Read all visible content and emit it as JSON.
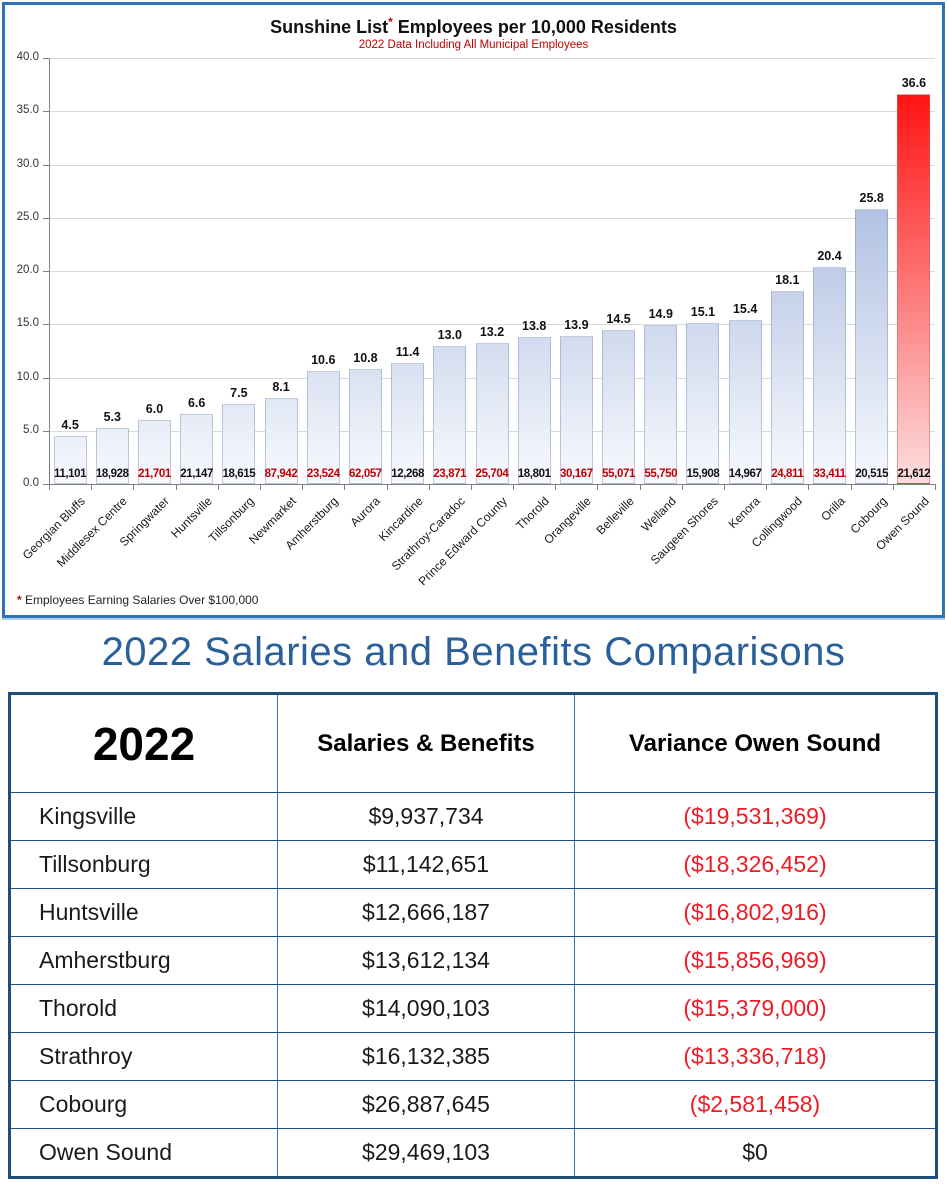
{
  "colors": {
    "accent": "#2E74B5",
    "navy": "#1F4E79",
    "title_blue": "#2A6099",
    "chart_red": "#C00000",
    "table_red": "#ED1C24",
    "grid_gray": "#D9D9D9",
    "axis_gray": "#808080",
    "bar_top": "#8CA3D4",
    "bar_bottom": "#F7F9FD",
    "bar_red_top": "#FF0000",
    "bar_red_bottom": "#FCDEDE"
  },
  "chart_data": {
    "type": "bar",
    "title_prefix": "Sunshine List",
    "title_star": "*",
    "title_suffix": " Employees per 10,000 Residents",
    "title": "Sunshine List* Employees per 10,000 Residents",
    "subtitle": "2022 Data Including All Municipal Employees",
    "footnote_star": "*",
    "footnote_text": " Employees Earning Salaries Over $100,000",
    "ylim": [
      0,
      40
    ],
    "ytick_step": 5,
    "grid": true,
    "legend_position": "none",
    "categories": [
      "Georgian Bluffs",
      "Middlesex Centre",
      "Springwater",
      "Huntsville",
      "Tillsonburg",
      "Newmarket",
      "Amherstburg",
      "Aurora",
      "Kincardine",
      "Strathroy-Caradoc",
      "Prince Edward County",
      "Thorold",
      "Orangeville",
      "Belleville",
      "Welland",
      "Saugeen Shores",
      "Kenora",
      "Collingwood",
      "Orilla",
      "Cobourg",
      "Owen Sound"
    ],
    "values": [
      4.5,
      5.3,
      6.0,
      6.6,
      7.5,
      8.1,
      10.6,
      10.8,
      11.4,
      13.0,
      13.2,
      13.8,
      13.9,
      14.5,
      14.9,
      15.1,
      15.4,
      18.1,
      20.4,
      25.8,
      36.6
    ],
    "base_values": [
      "11,101",
      "18,928",
      "21,701",
      "21,147",
      "18,615",
      "87,942",
      "23,524",
      "62,057",
      "12,268",
      "23,871",
      "25,704",
      "18,801",
      "30,167",
      "55,071",
      "55,750",
      "15,908",
      "14,967",
      "24,811",
      "33,411",
      "20,515",
      "21,612"
    ],
    "base_value_red": [
      false,
      false,
      true,
      false,
      false,
      true,
      true,
      true,
      false,
      true,
      true,
      false,
      true,
      true,
      true,
      false,
      false,
      true,
      true,
      false,
      false
    ],
    "highlight_index": 20
  },
  "section_title": "2022 Salaries and Benefits Comparisons",
  "table": {
    "headers": [
      "2022",
      "Salaries & Benefits",
      "Variance Owen Sound"
    ],
    "rows": [
      {
        "name": "Kingsville",
        "salaries_benefits": "$9,937,734",
        "variance": "($19,531,369)",
        "negative": true
      },
      {
        "name": "Tillsonburg",
        "salaries_benefits": "$11,142,651",
        "variance": "($18,326,452)",
        "negative": true
      },
      {
        "name": "Huntsville",
        "salaries_benefits": "$12,666,187",
        "variance": "($16,802,916)",
        "negative": true
      },
      {
        "name": "Amherstburg",
        "salaries_benefits": "$13,612,134",
        "variance": "($15,856,969)",
        "negative": true
      },
      {
        "name": "Thorold",
        "salaries_benefits": "$14,090,103",
        "variance": "($15,379,000)",
        "negative": true
      },
      {
        "name": "Strathroy",
        "salaries_benefits": "$16,132,385",
        "variance": "($13,336,718)",
        "negative": true
      },
      {
        "name": "Cobourg",
        "salaries_benefits": "$26,887,645",
        "variance": "($2,581,458)",
        "negative": true
      },
      {
        "name": "Owen Sound",
        "salaries_benefits": "$29,469,103",
        "variance": "$0",
        "negative": false
      }
    ]
  }
}
